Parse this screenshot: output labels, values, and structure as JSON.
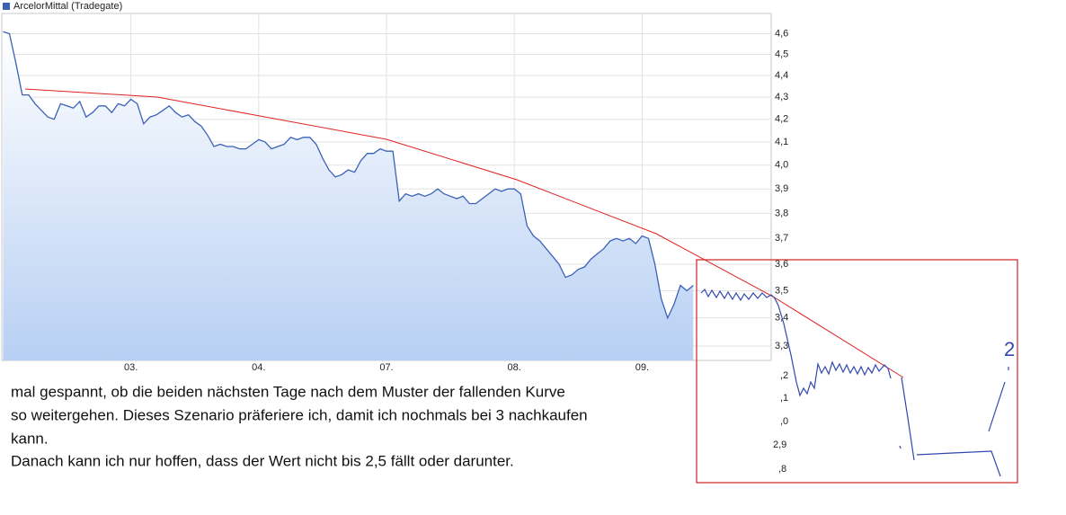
{
  "chart_data": {
    "type": "line",
    "log_y": true,
    "grid": true,
    "xlim": [
      -0.01,
      6.01
    ],
    "ylim": [
      3.25,
      4.7
    ],
    "xticks": [
      {
        "value": 1,
        "label": "03."
      },
      {
        "value": 2,
        "label": "04."
      },
      {
        "value": 3,
        "label": "07."
      },
      {
        "value": 4,
        "label": "08."
      },
      {
        "value": 5,
        "label": "09."
      }
    ],
    "yticks": [
      {
        "value": 4.6,
        "label": "4,6"
      },
      {
        "value": 4.5,
        "label": "4,5"
      },
      {
        "value": 4.4,
        "label": "4,4"
      },
      {
        "value": 4.3,
        "label": "4,3"
      },
      {
        "value": 4.2,
        "label": "4,2"
      },
      {
        "value": 4.1,
        "label": "4,1"
      },
      {
        "value": 4,
        "label": "4,0"
      },
      {
        "value": 3.9,
        "label": "3,9"
      },
      {
        "value": 3.8,
        "label": "3,8"
      },
      {
        "value": 3.7,
        "label": "3,7"
      },
      {
        "value": 3.6,
        "label": "3,6"
      },
      {
        "value": 3.5,
        "label": "3,5"
      },
      {
        "value": 3.4,
        "label": "3,4"
      },
      {
        "value": 3.3,
        "label": "3,3"
      }
    ],
    "x": [
      0,
      0.05,
      0.1,
      0.15,
      0.2,
      0.25,
      0.3,
      0.35,
      0.4,
      0.45,
      0.5,
      0.55,
      0.6,
      0.65,
      0.7,
      0.75,
      0.8,
      0.85,
      0.9,
      0.95,
      1,
      1.05,
      1.1,
      1.15,
      1.2,
      1.25,
      1.3,
      1.35,
      1.4,
      1.45,
      1.5,
      1.55,
      1.6,
      1.65,
      1.7,
      1.75,
      1.8,
      1.85,
      1.9,
      1.95,
      2,
      2.05,
      2.1,
      2.15,
      2.2,
      2.25,
      2.3,
      2.35,
      2.4,
      2.45,
      2.5,
      2.55,
      2.6,
      2.65,
      2.7,
      2.75,
      2.8,
      2.85,
      2.9,
      2.95,
      3,
      3.05,
      3.1,
      3.15,
      3.2,
      3.25,
      3.3,
      3.35,
      3.4,
      3.45,
      3.5,
      3.55,
      3.6,
      3.65,
      3.7,
      3.75,
      3.8,
      3.85,
      3.9,
      3.95,
      4,
      4.05,
      4.1,
      4.15,
      4.2,
      4.25,
      4.3,
      4.35,
      4.4,
      4.45,
      4.5,
      4.55,
      4.6,
      4.65,
      4.7,
      4.75,
      4.8,
      4.85,
      4.9,
      4.95,
      5,
      5.05,
      5.1,
      5.15,
      5.2,
      5.25,
      5.3,
      5.35,
      5.4
    ],
    "series": [
      {
        "name": "ArcelorMittal (Tradegate)",
        "color": "#3a62b8",
        "values": [
          4.61,
          4.6,
          4.46,
          4.31,
          4.31,
          4.27,
          4.24,
          4.21,
          4.2,
          4.27,
          4.26,
          4.25,
          4.28,
          4.21,
          4.23,
          4.26,
          4.26,
          4.23,
          4.27,
          4.26,
          4.29,
          4.27,
          4.18,
          4.21,
          4.22,
          4.24,
          4.26,
          4.23,
          4.21,
          4.22,
          4.19,
          4.17,
          4.13,
          4.08,
          4.09,
          4.08,
          4.08,
          4.07,
          4.07,
          4.09,
          4.11,
          4.1,
          4.07,
          4.08,
          4.09,
          4.12,
          4.11,
          4.12,
          4.12,
          4.09,
          4.03,
          3.98,
          3.95,
          3.96,
          3.98,
          3.97,
          4.02,
          4.05,
          4.05,
          4.07,
          4.06,
          4.06,
          3.85,
          3.88,
          3.87,
          3.88,
          3.87,
          3.88,
          3.9,
          3.88,
          3.87,
          3.86,
          3.87,
          3.84,
          3.84,
          3.86,
          3.88,
          3.9,
          3.89,
          3.9,
          3.9,
          3.88,
          3.75,
          3.71,
          3.69,
          3.66,
          3.63,
          3.6,
          3.55,
          3.56,
          3.58,
          3.59,
          3.62,
          3.64,
          3.66,
          3.69,
          3.7,
          3.69,
          3.7,
          3.68,
          3.71,
          3.7,
          3.6,
          3.47,
          3.4,
          3.45,
          3.52,
          3.5,
          3.52
        ]
      }
    ],
    "annotations": [
      ",2",
      ",1",
      ",0",
      "2,9",
      ",8",
      "2"
    ]
  },
  "post": {
    "lines": [
      "mal gespannt, ob die beiden nächsten Tage nach dem Muster der fallenden Kurve",
      "so weitergehen. Dieses Szenario präferiere ich, damit ich nochmals bei 3 nachkaufen",
      "kann.",
      "Danach kann ich nur hoffen, dass der Wert nicht bis 2,5 fällt oder darunter."
    ]
  }
}
